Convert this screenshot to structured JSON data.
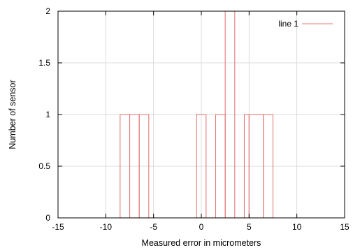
{
  "chart_data": {
    "type": "line",
    "style": "histogram-steps",
    "xlabel": "Measured error in micrometers",
    "ylabel": "Number of sensor",
    "xlim": [
      -15,
      15
    ],
    "ylim": [
      0,
      2
    ],
    "xticks": [
      -15,
      -10,
      -5,
      0,
      5,
      10,
      15
    ],
    "yticks": [
      0,
      0.5,
      1,
      1.5,
      2
    ],
    "xtick_labels": [
      "-15",
      "-10",
      "-5",
      "0",
      "5",
      "10",
      "15"
    ],
    "ytick_labels": [
      "0",
      "0.5",
      "1",
      "1.5",
      "2"
    ],
    "grid": true,
    "legend_position": "top-right",
    "series": [
      {
        "name": "line 1",
        "color": "#e07a78",
        "bins": [
          {
            "x0": -10.0,
            "x1": -8.5,
            "y": 0
          },
          {
            "x0": -8.5,
            "x1": -7.5,
            "y": 1
          },
          {
            "x0": -7.5,
            "x1": -6.5,
            "y": 1
          },
          {
            "x0": -6.5,
            "x1": -5.5,
            "y": 1
          },
          {
            "x0": -5.5,
            "x1": -0.5,
            "y": 0
          },
          {
            "x0": -0.5,
            "x1": 0.5,
            "y": 1
          },
          {
            "x0": 0.5,
            "x1": 1.5,
            "y": 0
          },
          {
            "x0": 1.5,
            "x1": 2.5,
            "y": 1
          },
          {
            "x0": 2.5,
            "x1": 3.5,
            "y": 2
          },
          {
            "x0": 3.5,
            "x1": 4.5,
            "y": 0
          },
          {
            "x0": 4.5,
            "x1": 5.0,
            "y": 1
          },
          {
            "x0": 5.0,
            "x1": 6.5,
            "y": 1
          },
          {
            "x0": 6.5,
            "x1": 7.5,
            "y": 1
          },
          {
            "x0": 7.5,
            "x1": 10.0,
            "y": 0
          }
        ]
      }
    ]
  }
}
